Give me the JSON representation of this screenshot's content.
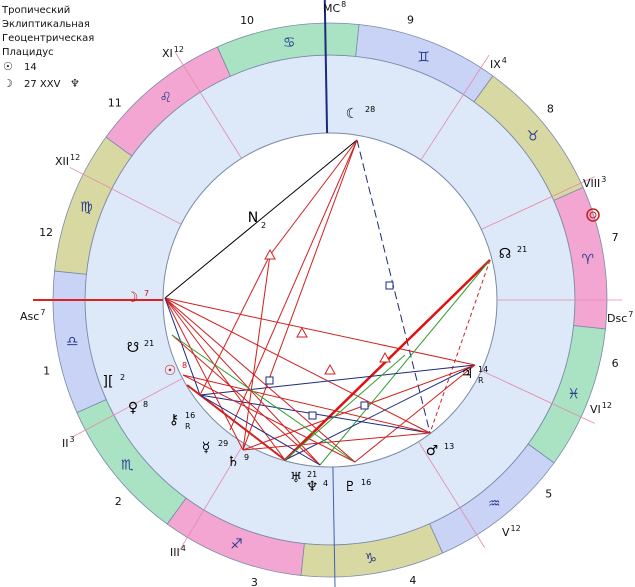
{
  "legend": {
    "lines": [
      "Тропический",
      "Эклиптикальная",
      "Геоцентрическая",
      "Плацидус"
    ],
    "sun": {
      "symbol": "☉",
      "value": "14"
    },
    "moon": {
      "symbol": "☽",
      "value": "27 XXV",
      "planet": "♆"
    }
  },
  "signs": [
    "♈",
    "♉",
    "♊",
    "♋",
    "♌",
    "♍",
    "♎",
    "♏",
    "♐",
    "♑",
    "♒",
    "♓"
  ],
  "houses": [
    "1",
    "2",
    "3",
    "4",
    "5",
    "6",
    "7",
    "8",
    "9",
    "10",
    "11",
    "12"
  ],
  "cusps": [
    {
      "label": "Asc",
      "index": "7"
    },
    {
      "label": "II",
      "index": "3"
    },
    {
      "label": "III",
      "index": "4"
    },
    {
      "label": "V",
      "index": "12"
    },
    {
      "label": "VI",
      "index": "12"
    },
    {
      "label": "Dsc",
      "index": "7"
    },
    {
      "label": "VIII",
      "index": "3"
    },
    {
      "label": "IX",
      "index": "4"
    },
    {
      "label": "MC",
      "index": "8"
    },
    {
      "label": "XI",
      "index": "12"
    },
    {
      "label": "XII",
      "index": "12"
    }
  ],
  "planets": [
    {
      "symbol": "☾",
      "degree": "28"
    },
    {
      "symbol": "N",
      "degree": "2"
    },
    {
      "symbol": "☊",
      "degree": "21"
    },
    {
      "symbol": "♃",
      "degree": "14",
      "flag": "R"
    },
    {
      "symbol": "♂",
      "degree": "13"
    },
    {
      "symbol": "♅",
      "degree": "21"
    },
    {
      "symbol": "♆",
      "degree": "4"
    },
    {
      "symbol": "♇",
      "degree": "16"
    },
    {
      "symbol": "♄",
      "degree": "9"
    },
    {
      "symbol": "☿",
      "degree": "29"
    },
    {
      "symbol": "⚷",
      "degree": "16",
      "flag": "R"
    },
    {
      "symbol": "♀",
      "degree": "8"
    },
    {
      "symbol": "][",
      "degree": "2"
    },
    {
      "symbol": "☋",
      "degree": "21"
    },
    {
      "symbol": "☉",
      "degree": "8"
    },
    {
      "symbol": "☽",
      "degree": "7"
    }
  ]
}
